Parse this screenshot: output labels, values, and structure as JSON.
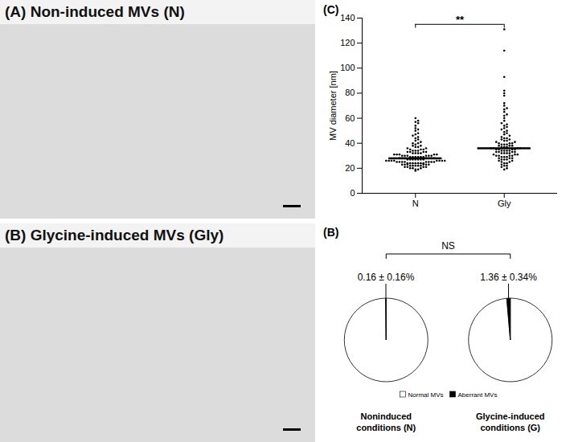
{
  "chart_data": [
    {
      "type": "image",
      "title": "(A) Non-induced MVs (N)"
    },
    {
      "type": "image",
      "title": "(B) Glycine-induced MVs (Gly)"
    },
    {
      "type": "scatter",
      "title": "(C)",
      "categories": [
        "N",
        "Gly"
      ],
      "values": [
        [
          18,
          19,
          19,
          20,
          20,
          20,
          21,
          21,
          21,
          21,
          22,
          22,
          22,
          22,
          22,
          23,
          23,
          23,
          23,
          23,
          23,
          24,
          24,
          24,
          24,
          24,
          24,
          24,
          25,
          25,
          25,
          25,
          25,
          25,
          25,
          25,
          26,
          26,
          26,
          26,
          26,
          26,
          26,
          26,
          27,
          27,
          27,
          27,
          27,
          27,
          27,
          28,
          28,
          28,
          28,
          28,
          28,
          28,
          29,
          29,
          29,
          29,
          29,
          29,
          30,
          30,
          30,
          30,
          30,
          30,
          31,
          31,
          31,
          31,
          31,
          32,
          32,
          32,
          32,
          33,
          33,
          33,
          33,
          34,
          34,
          34,
          35,
          35,
          35,
          36,
          36,
          37,
          37,
          38,
          38,
          39,
          40,
          40,
          41,
          42,
          43,
          44,
          45,
          46,
          47,
          48,
          50,
          51,
          52,
          54,
          56,
          57,
          58,
          60
        ],
        [
          19,
          20,
          21,
          22,
          22,
          23,
          24,
          24,
          25,
          25,
          26,
          26,
          27,
          27,
          27,
          28,
          28,
          28,
          29,
          29,
          29,
          30,
          30,
          30,
          30,
          31,
          31,
          31,
          32,
          32,
          32,
          32,
          33,
          33,
          33,
          33,
          34,
          34,
          34,
          34,
          35,
          35,
          35,
          35,
          36,
          36,
          36,
          36,
          37,
          37,
          37,
          38,
          38,
          38,
          39,
          39,
          39,
          40,
          40,
          40,
          41,
          41,
          42,
          42,
          43,
          43,
          44,
          44,
          45,
          46,
          47,
          48,
          49,
          50,
          51,
          52,
          53,
          54,
          55,
          56,
          58,
          60,
          62,
          63,
          65,
          67,
          68,
          70,
          72,
          78,
          80,
          82,
          93,
          114,
          131
        ]
      ],
      "medians": [
        28,
        36
      ],
      "ylabel": "MV diameter [nm]",
      "ylim": [
        0,
        140
      ],
      "yticks": [
        0,
        20,
        40,
        60,
        80,
        100,
        120,
        140
      ],
      "annotation": "**",
      "color": "#000000"
    },
    {
      "type": "pie",
      "title": "(B)",
      "annotation": "NS",
      "legend": "bottom",
      "colors": [
        "#ffffff",
        "#000000"
      ],
      "pies": [
        {
          "title": "Noninduced conditions (N)",
          "categories": [
            "Normal MVs",
            "Aberrant MVs"
          ],
          "values": [
            99.84,
            0.16
          ],
          "value_labels": [
            null,
            "0.16 ± 0.16%"
          ]
        },
        {
          "title": "Glycine-induced conditions (G)",
          "categories": [
            "Normal MVs",
            "Aberrant MVs"
          ],
          "values": [
            98.64,
            1.36
          ],
          "value_labels": [
            null,
            "1.36 ± 0.34%"
          ]
        }
      ]
    }
  ]
}
